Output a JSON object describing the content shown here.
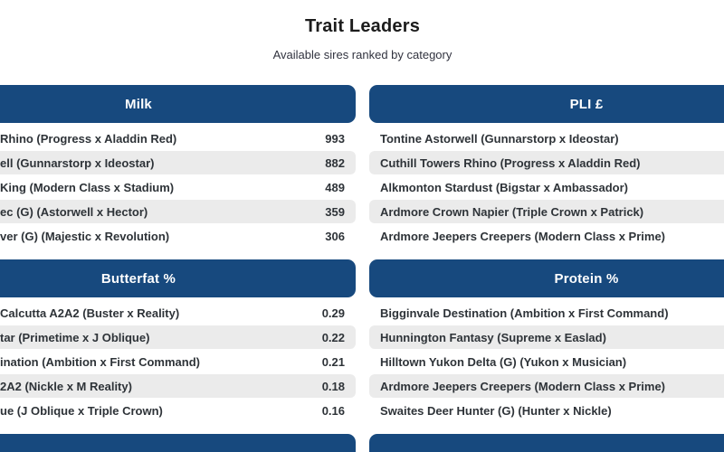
{
  "header": {
    "title": "Trait Leaders",
    "subtitle": "Available sires ranked by category"
  },
  "theme": {
    "panel_header_bg": "#17497E",
    "panel_header_text": "#FFFFFF",
    "row_alt_bg": "#EBEBEB",
    "row_text": "#2E3338",
    "page_bg": "#FFFFFF"
  },
  "sections": [
    {
      "title": "Milk",
      "side": "left",
      "rows": [
        {
          "name": "Rhino (Progress x Aladdin Red)",
          "value": "993"
        },
        {
          "name": "ell (Gunnarstorp x Ideostar)",
          "value": "882"
        },
        {
          "name": "King (Modern Class x Stadium)",
          "value": "489"
        },
        {
          "name": "ec (G) (Astorwell x Hector)",
          "value": "359"
        },
        {
          "name": "ver (G) (Majestic x Revolution)",
          "value": "306"
        }
      ]
    },
    {
      "title": "PLI £",
      "side": "right",
      "rows": [
        {
          "name": "Tontine Astorwell (Gunnarstorp x Ideostar)"
        },
        {
          "name": "Cuthill Towers Rhino (Progress x Aladdin Red)"
        },
        {
          "name": "Alkmonton Stardust (Bigstar x Ambassador)"
        },
        {
          "name": "Ardmore Crown Napier (Triple Crown x Patrick)"
        },
        {
          "name": "Ardmore Jeepers Creepers (Modern Class x Prime)"
        }
      ]
    },
    {
      "title": "Butterfat %",
      "side": "left",
      "rows": [
        {
          "name": "Calcutta A2A2 (Buster x Reality)",
          "value": "0.29"
        },
        {
          "name": "tar (Primetime x J Oblique)",
          "value": "0.22"
        },
        {
          "name": "ination (Ambition x First Command)",
          "value": "0.21"
        },
        {
          "name": "2A2 (Nickle x M Reality)",
          "value": "0.18"
        },
        {
          "name": "ue (J Oblique x Triple Crown)",
          "value": "0.16"
        }
      ]
    },
    {
      "title": "Protein %",
      "side": "right",
      "rows": [
        {
          "name": "Bigginvale Destination (Ambition x First Command)"
        },
        {
          "name": "Hunnington Fantasy (Supreme x Easlad)"
        },
        {
          "name": "Hilltown Yukon Delta (G) (Yukon x Musician)"
        },
        {
          "name": "Ardmore Jeepers Creepers (Modern Class x Prime)"
        },
        {
          "name": "Swaites Deer Hunter (G) (Hunter x Nickle)"
        }
      ]
    },
    {
      "title": "",
      "side": "left",
      "rows": []
    },
    {
      "title": "",
      "side": "right",
      "rows": []
    }
  ]
}
